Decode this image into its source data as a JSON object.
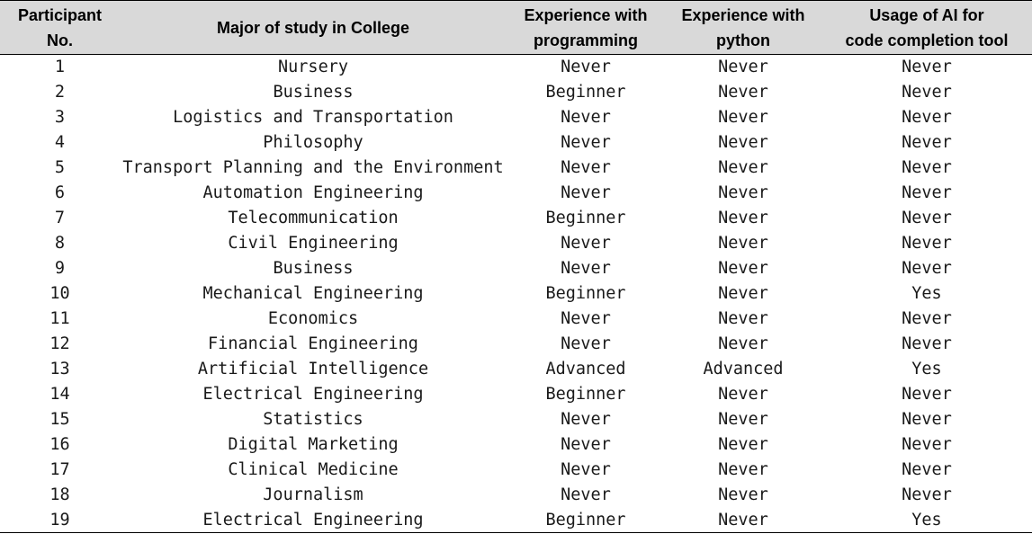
{
  "table": {
    "headers": [
      [
        "Participant",
        "No."
      ],
      [
        "Major of study in College"
      ],
      [
        "Experience with",
        "programming"
      ],
      [
        "Experience with",
        "python"
      ],
      [
        "Usage of AI for",
        "code completion tool"
      ]
    ],
    "rows": [
      [
        "1",
        "Nursery",
        "Never",
        "Never",
        "Never"
      ],
      [
        "2",
        "Business",
        "Beginner",
        "Never",
        "Never"
      ],
      [
        "3",
        "Logistics and Transportation",
        "Never",
        "Never",
        "Never"
      ],
      [
        "4",
        "Philosophy",
        "Never",
        "Never",
        "Never"
      ],
      [
        "5",
        "Transport Planning and the Environment",
        "Never",
        "Never",
        "Never"
      ],
      [
        "6",
        "Automation Engineering",
        "Never",
        "Never",
        "Never"
      ],
      [
        "7",
        "Telecommunication",
        "Beginner",
        "Never",
        "Never"
      ],
      [
        "8",
        "Civil Engineering",
        "Never",
        "Never",
        "Never"
      ],
      [
        "9",
        "Business",
        "Never",
        "Never",
        "Never"
      ],
      [
        "10",
        "Mechanical Engineering",
        "Beginner",
        "Never",
        "Yes"
      ],
      [
        "11",
        "Economics",
        "Never",
        "Never",
        "Never"
      ],
      [
        "12",
        "Financial Engineering",
        "Never",
        "Never",
        "Never"
      ],
      [
        "13",
        "Artificial Intelligence",
        "Advanced",
        "Advanced",
        "Yes"
      ],
      [
        "14",
        "Electrical Engineering",
        "Beginner",
        "Never",
        "Never"
      ],
      [
        "15",
        "Statistics",
        "Never",
        "Never",
        "Never"
      ],
      [
        "16",
        "Digital Marketing",
        "Never",
        "Never",
        "Never"
      ],
      [
        "17",
        "Clinical Medicine",
        "Never",
        "Never",
        "Never"
      ],
      [
        "18",
        "Journalism",
        "Never",
        "Never",
        "Never"
      ],
      [
        "19",
        "Electrical Engineering",
        "Beginner",
        "Never",
        "Yes"
      ]
    ]
  },
  "colors": {
    "header_background": "#d9d9d9",
    "rule": "#000000"
  }
}
